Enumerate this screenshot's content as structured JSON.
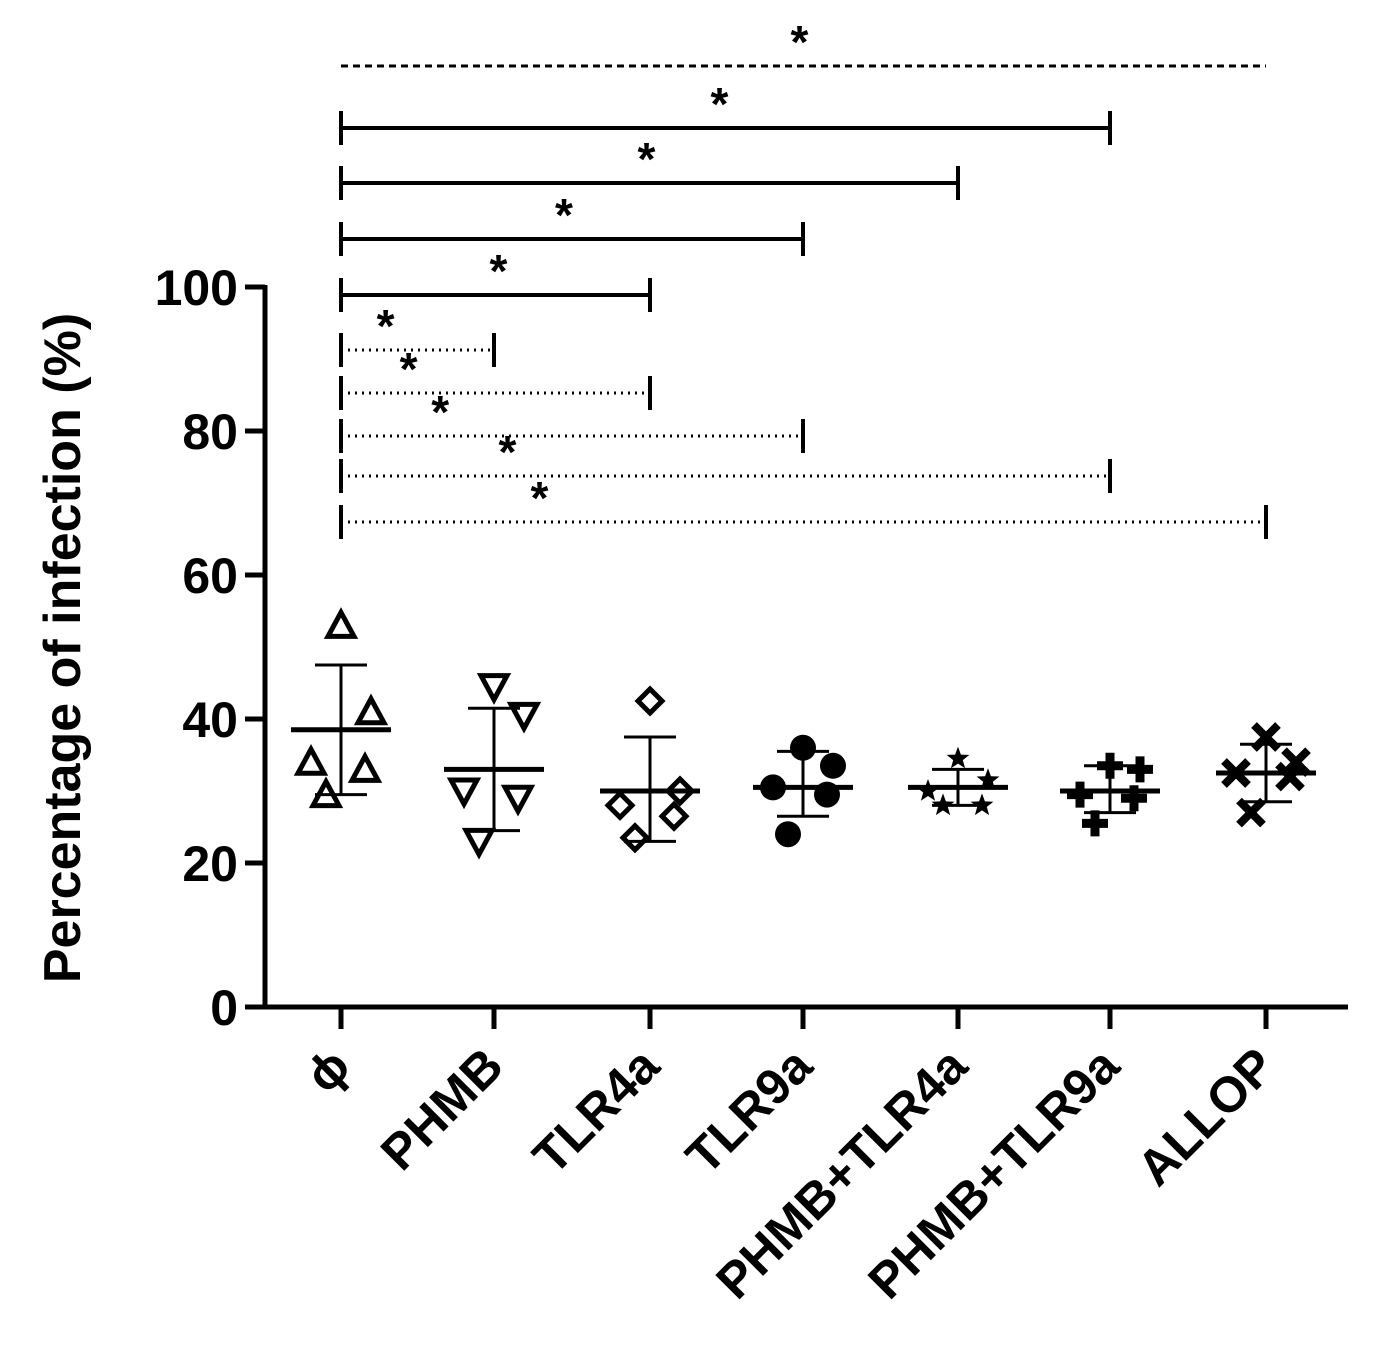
{
  "chart_data": {
    "type": "scatter",
    "ylabel": "Percentage of infection (%)",
    "xlabel": "",
    "ylim": [
      0,
      100
    ],
    "yticks": [
      "0",
      "20",
      "40",
      "60",
      "80",
      "100"
    ],
    "categories": [
      "ϕ",
      "PHMB",
      "TLR4a",
      "TLR9a",
      "PHMB+TLR4a",
      "PHMB+TLR9a",
      "ALLOP"
    ],
    "groups": [
      {
        "name": "ϕ",
        "marker": "triangle-up-open",
        "values": [
          53,
          41,
          34,
          33,
          29.5
        ],
        "mean": 38.5,
        "sd_upper": 47.5,
        "sd_lower": 29.5
      },
      {
        "name": "PHMB",
        "marker": "triangle-down-open",
        "values": [
          44.5,
          40.5,
          30,
          29,
          23
        ],
        "mean": 33,
        "sd_upper": 41.5,
        "sd_lower": 24.5
      },
      {
        "name": "TLR4a",
        "marker": "diamond-open",
        "values": [
          42.5,
          30,
          28,
          26.5,
          23.5
        ],
        "mean": 30,
        "sd_upper": 37.5,
        "sd_lower": 23
      },
      {
        "name": "TLR9a",
        "marker": "circle-filled",
        "values": [
          36,
          33.5,
          30.5,
          29.5,
          24
        ],
        "mean": 30.5,
        "sd_upper": 35.5,
        "sd_lower": 26.5
      },
      {
        "name": "PHMB+TLR4a",
        "marker": "star-filled",
        "values": [
          34.5,
          31.5,
          30,
          28,
          28
        ],
        "mean": 30.5,
        "sd_upper": 33,
        "sd_lower": 28
      },
      {
        "name": "PHMB+TLR9a",
        "marker": "plus-filled",
        "values": [
          33.5,
          33,
          29.5,
          29,
          25.5
        ],
        "mean": 30,
        "sd_upper": 33.5,
        "sd_lower": 27
      },
      {
        "name": "ALLOP",
        "marker": "x-filled",
        "values": [
          37.5,
          34,
          32.5,
          32,
          27
        ],
        "mean": 32.5,
        "sd_upper": 36.5,
        "sd_lower": 28.5
      }
    ],
    "significance": [
      {
        "label": "*",
        "from": "ϕ",
        "to": "ALLOP",
        "style": "dashed",
        "caps": false
      },
      {
        "label": "*",
        "from": "ϕ",
        "to": "PHMB+TLR9a",
        "style": "solid",
        "caps": true
      },
      {
        "label": "*",
        "from": "ϕ",
        "to": "PHMB+TLR4a",
        "style": "solid",
        "caps": true
      },
      {
        "label": "*",
        "from": "ϕ",
        "to": "TLR9a",
        "style": "solid",
        "caps": true
      },
      {
        "label": "*",
        "from": "ϕ",
        "to": "TLR4a",
        "style": "solid",
        "caps": true
      },
      {
        "label": "*",
        "from": "ϕ",
        "to": "PHMB",
        "style": "dotted",
        "caps": true
      },
      {
        "label": "*",
        "from": "ϕ",
        "to": "TLR4a",
        "style": "dotted",
        "caps": true
      },
      {
        "label": "*",
        "from": "ϕ",
        "to": "TLR9a",
        "style": "dotted",
        "caps": true
      },
      {
        "label": "*",
        "from": "ϕ",
        "to": "PHMB+TLR9a",
        "style": "dotted",
        "caps": true
      },
      {
        "label": "*",
        "from": "ϕ",
        "to": "ALLOP",
        "style": "dotted",
        "caps": true
      }
    ]
  }
}
